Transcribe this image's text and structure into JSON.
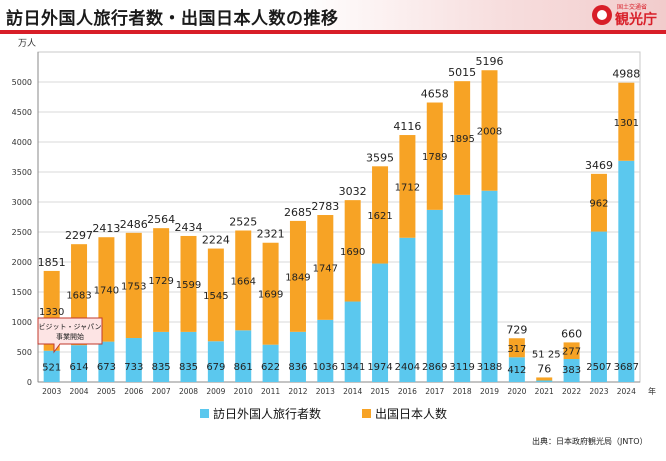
{
  "header": {
    "title": "訪日外国人旅行者数・出国日本人数の推移",
    "logo_text": "観光庁",
    "logo_subtext": "国土交通省"
  },
  "source": "出典：日本政府観光局（JNTO）",
  "colors": {
    "inbound": "#5bc8ee",
    "outbound": "#f7a325",
    "accent": "#d81e28"
  },
  "chart_data": {
    "type": "bar",
    "stacked": true,
    "categories": [
      "2003",
      "2004",
      "2005",
      "2006",
      "2007",
      "2008",
      "2009",
      "2010",
      "2011",
      "2012",
      "2013",
      "2014",
      "2015",
      "2016",
      "2017",
      "2018",
      "2019",
      "2020",
      "2021",
      "2022",
      "2023",
      "2024"
    ],
    "series": [
      {
        "name": "訪日外国人旅行者数",
        "values": [
          521,
          614,
          673,
          733,
          835,
          835,
          679,
          861,
          622,
          836,
          1036,
          1341,
          1974,
          2404,
          2869,
          3119,
          3188,
          412,
          25,
          383,
          2507,
          3687
        ]
      },
      {
        "name": "出国日本人数",
        "values": [
          1330,
          1683,
          1740,
          1753,
          1729,
          1599,
          1545,
          1664,
          1699,
          1849,
          1747,
          1690,
          1621,
          1712,
          1789,
          1895,
          2008,
          317,
          51,
          277,
          962,
          1301
        ]
      }
    ],
    "totals": [
      1851,
      2297,
      2413,
      2486,
      2564,
      2434,
      2224,
      2525,
      2321,
      2685,
      2783,
      3032,
      3595,
      4116,
      4658,
      5015,
      5196,
      729,
      76,
      660,
      3469,
      4988
    ],
    "y_unit": "万人",
    "x_unit": "年",
    "ylim": [
      0,
      5500
    ],
    "yticks": [
      0,
      500,
      1000,
      1500,
      2000,
      2500,
      3000,
      3500,
      4000,
      4500,
      5000
    ],
    "grid": true,
    "legend_position": "bottom",
    "annotation": {
      "line1": "ビジット・ジャパン",
      "line2": "事業開始",
      "category": "2003"
    }
  }
}
